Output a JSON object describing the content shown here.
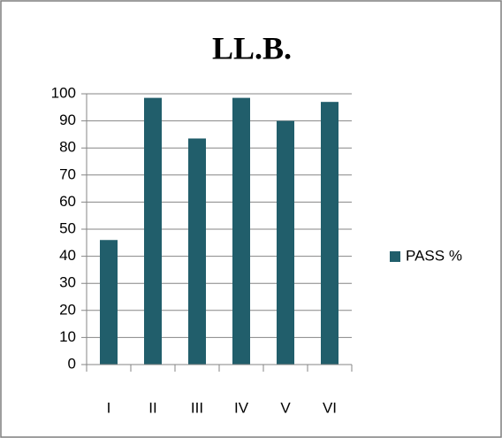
{
  "chart_data": {
    "type": "bar",
    "title": "LL.B.",
    "categories": [
      "I",
      "II",
      "III",
      "IV",
      "V",
      "VI"
    ],
    "series": [
      {
        "name": "PASS %",
        "color": "#215e6b",
        "values": [
          46,
          98.5,
          83.5,
          98.5,
          90,
          97
        ]
      }
    ],
    "ylim": [
      0,
      100
    ],
    "yticks": [
      0,
      10,
      20,
      30,
      40,
      50,
      60,
      70,
      80,
      90,
      100
    ],
    "grid": true,
    "legend": "right"
  }
}
